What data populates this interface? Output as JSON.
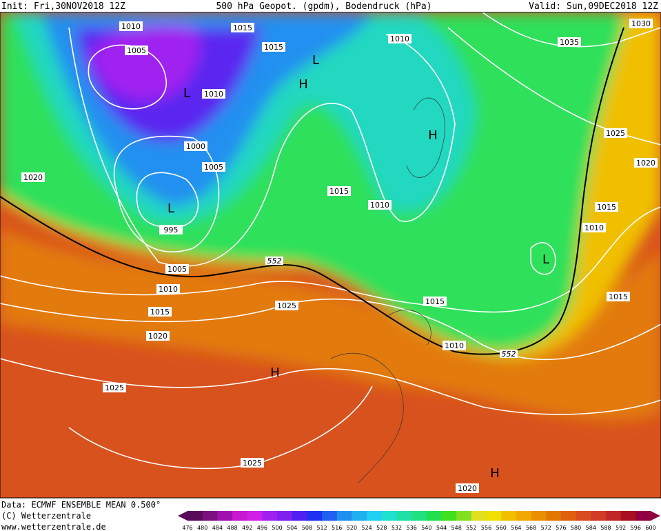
{
  "header": {
    "init": "Init: Fri,30NOV2018 12Z",
    "title": "500 hPa Geopot. (gpdm), Bodendruck (hPa)",
    "valid": "Valid: Sun,09DEC2018 12Z"
  },
  "map": {
    "isobar_labels": [
      "1010",
      "1015",
      "1005",
      "1015",
      "1010",
      "1035",
      "1030",
      "1010",
      "1025",
      "1000",
      "1005",
      "1020",
      "1020",
      "1015",
      "1010",
      "1015",
      "995",
      "1010",
      "1005",
      "1010",
      "1015",
      "1015",
      "1025",
      "1015",
      "1020",
      "1010",
      "1025",
      "1025",
      "1020"
    ],
    "pressure_centers": [
      "L",
      "H",
      "L",
      "H",
      "L",
      "L",
      "H",
      "H"
    ],
    "contour_labels": [
      "552",
      "552"
    ]
  },
  "footer": {
    "data": "Data: ECMWF ENSEMBLE MEAN 0.500°",
    "copyright": "(C) Wetterzentrale",
    "url": "www.wetterzentrale.de"
  },
  "color_scale": {
    "ticks": [
      476,
      480,
      484,
      488,
      492,
      496,
      500,
      504,
      508,
      512,
      516,
      520,
      524,
      528,
      532,
      536,
      540,
      544,
      548,
      552,
      556,
      560,
      564,
      568,
      572,
      576,
      580,
      584,
      588,
      592,
      596,
      600
    ],
    "colors": [
      "#5a0a5a",
      "#7a1080",
      "#a010b0",
      "#c818d0",
      "#d020e8",
      "#a020f0",
      "#8020f0",
      "#5020f0",
      "#2030f0",
      "#2060f0",
      "#2090f0",
      "#20b0f0",
      "#20d0f0",
      "#20e0d0",
      "#20e0a8",
      "#20e080",
      "#20e050",
      "#40e020",
      "#80e020",
      "#e0e020",
      "#f0e000",
      "#f0c000",
      "#f0a800",
      "#e89000",
      "#e07800",
      "#e06010",
      "#d84c20",
      "#d03c28",
      "#c02828",
      "#a81020",
      "#900040"
    ]
  }
}
